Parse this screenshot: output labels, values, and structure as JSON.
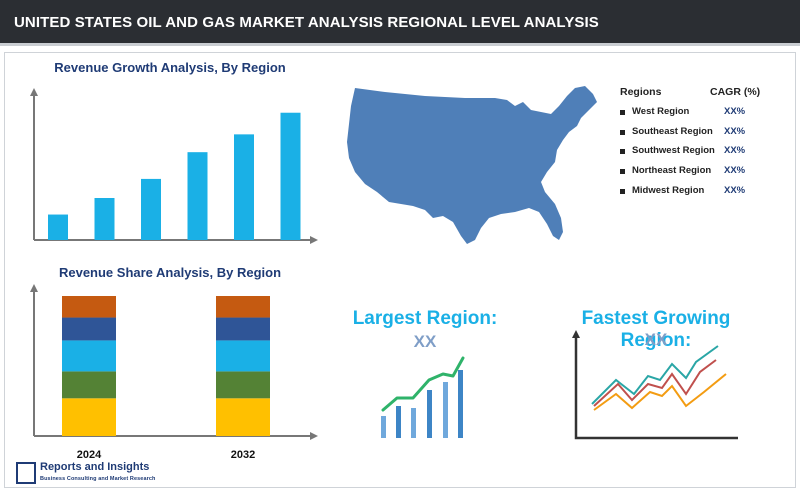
{
  "header": {
    "title": "UNITED STATES OIL AND GAS MARKET ANALYSIS REGIONAL LEVEL ANALYSIS"
  },
  "colors": {
    "header_bg": "#2b2e33",
    "accent_blue": "#1ab0e6",
    "navy": "#1f3b75",
    "map_fill": "#4f7fb8",
    "stack": [
      "#ffc000",
      "#548235",
      "#1ab0e6",
      "#2f5597",
      "#c55a11"
    ]
  },
  "chart_data": [
    {
      "type": "bar",
      "title": "Revenue Growth Analysis, By Region",
      "categories": [
        "",
        "",
        "",
        "",
        "",
        ""
      ],
      "values": [
        1.0,
        1.65,
        2.4,
        3.45,
        4.15,
        5.0
      ],
      "xlabel": "",
      "ylabel": "",
      "ylim": [
        0,
        5.5
      ],
      "grid": false
    },
    {
      "type": "bar",
      "stacked": true,
      "title": "Revenue Share Analysis, By Region",
      "categories": [
        "2024",
        "2032"
      ],
      "series": [
        {
          "values": [
            28,
            28
          ]
        },
        {
          "values": [
            20,
            20
          ]
        },
        {
          "values": [
            23,
            23
          ]
        },
        {
          "values": [
            17,
            17
          ]
        },
        {
          "values": [
            16,
            16
          ]
        }
      ],
      "ylim": [
        0,
        104
      ],
      "grid": false
    }
  ],
  "regions_table": {
    "header_region": "Regions",
    "header_cagr": "CAGR (%)",
    "rows": [
      {
        "name": "West Region",
        "value": "XX%"
      },
      {
        "name": "Southeast Region",
        "value": "XX%"
      },
      {
        "name": "Southwest Region",
        "value": "XX%"
      },
      {
        "name": "Northeast Region",
        "value": "XX%"
      },
      {
        "name": "Midwest Region",
        "value": "XX%"
      }
    ]
  },
  "largest": {
    "label": "Largest Region:",
    "value": "XX"
  },
  "fastest": {
    "label": "Fastest Growing Region:",
    "value": "XX"
  },
  "logo": {
    "title": "Reports and Insights",
    "subtitle": "Business Consulting and Market Research"
  }
}
